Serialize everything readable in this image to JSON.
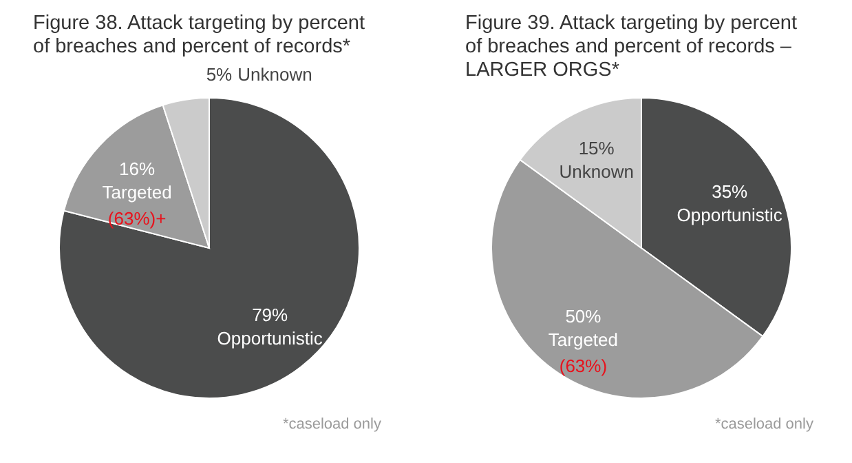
{
  "chart_data": [
    {
      "type": "pie",
      "title": "Figure 38. Attack targeting by percent of breaches and percent of records*",
      "categories": [
        "Opportunistic",
        "Targeted",
        "Unknown"
      ],
      "values": [
        79,
        16,
        5
      ],
      "value_labels": [
        "79%",
        "16%",
        "5%"
      ],
      "colors": [
        "#4b4c4c",
        "#9c9c9c",
        "#cbcbcb"
      ],
      "annotations": [
        {
          "text": "(63%)+",
          "x": "Targeted"
        },
        "*caseload only"
      ]
    },
    {
      "type": "pie",
      "title": "Figure 39. Attack targeting by percent of breaches and percent of records – LARGER ORGS*",
      "categories": [
        "Opportunistic",
        "Targeted",
        "Unknown"
      ],
      "values": [
        35,
        50,
        15
      ],
      "value_labels": [
        "35%",
        "50%",
        "15%"
      ],
      "colors": [
        "#4b4c4c",
        "#9c9c9c",
        "#cbcbcb"
      ],
      "annotations": [
        {
          "text": "(63%)",
          "x": "Targeted"
        },
        "*caseload only"
      ]
    }
  ]
}
